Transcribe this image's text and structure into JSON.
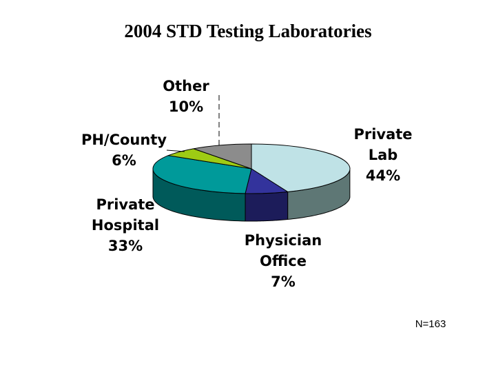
{
  "chart_data": {
    "type": "pie",
    "title": "2004 STD Testing Laboratories",
    "slices": [
      {
        "name": "Private Lab",
        "label_lines": [
          "Private",
          "Lab",
          "44%"
        ],
        "value": 44,
        "color": "#bfe2e6",
        "side_color": "#5e7775"
      },
      {
        "name": "Physician Office",
        "label_lines": [
          "Physician",
          "Office",
          "7%"
        ],
        "value": 7,
        "color": "#33339c",
        "side_color": "#1c1c5a"
      },
      {
        "name": "Private Hospital",
        "label_lines": [
          "Private",
          "Hospital",
          "33%"
        ],
        "value": 33,
        "color": "#009a9a",
        "side_color": "#005a5a"
      },
      {
        "name": "PH/County",
        "label_lines": [
          "PH/County",
          "6%"
        ],
        "value": 6,
        "color": "#9ecb14",
        "side_color": "#5a7a08"
      },
      {
        "name": "Other",
        "label_lines": [
          "Other",
          "10%"
        ],
        "value": 10,
        "color": "#8c8c8c",
        "side_color": "#505050"
      }
    ]
  },
  "note": "N=163"
}
